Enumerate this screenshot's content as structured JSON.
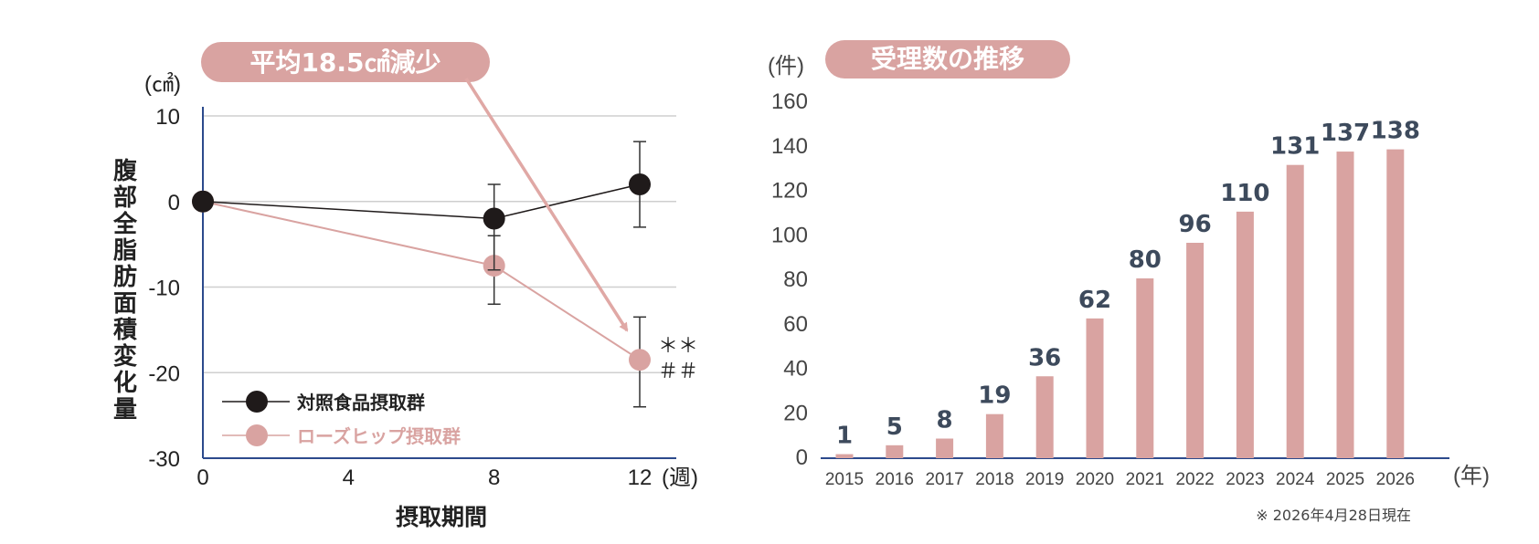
{
  "chart_data": [
    {
      "type": "line",
      "badge": "平均18.5㎠減少",
      "ylabel": "腹部全脂肪面積変化量",
      "yunit": "(㎠)",
      "xlabel": "摂取期間",
      "xunit": "(週)",
      "ylim": [
        -30,
        10
      ],
      "yticks": [
        10,
        0,
        -10,
        -20,
        -30
      ],
      "xlim": [
        0,
        12
      ],
      "xticks": [
        0,
        4,
        8,
        12
      ],
      "significance": [
        "＊＊",
        "＃＃"
      ],
      "series": [
        {
          "name": "対照食品摂取群",
          "color": "#1f1a1a",
          "x": [
            0,
            8,
            12
          ],
          "y": [
            0,
            -2,
            2
          ],
          "err": [
            [
              0,
              0
            ],
            [
              -6,
              4
            ],
            [
              -5,
              5
            ]
          ]
        },
        {
          "name": "ローズヒップ摂取群",
          "color": "#d9a3a1",
          "x": [
            0,
            8,
            12
          ],
          "y": [
            0,
            -7.5,
            -18.5
          ],
          "err": [
            [
              0,
              0
            ],
            [
              -4.5,
              3.5
            ],
            [
              -5.5,
              5
            ]
          ]
        }
      ]
    },
    {
      "type": "bar",
      "badge": "受理数の推移",
      "yunit": "(件)",
      "xunit": "(年)",
      "ylim": [
        0,
        160
      ],
      "yticks": [
        0,
        20,
        40,
        60,
        80,
        100,
        120,
        140,
        160
      ],
      "categories": [
        "2015",
        "2016",
        "2017",
        "2018",
        "2019",
        "2020",
        "2021",
        "2022",
        "2023",
        "2024",
        "2025",
        "2026"
      ],
      "values": [
        1,
        5,
        8,
        19,
        36,
        62,
        80,
        96,
        110,
        131,
        137,
        138
      ],
      "bar_color": "#d9a3a1",
      "note": "※ 2026年4月28日現在"
    }
  ]
}
